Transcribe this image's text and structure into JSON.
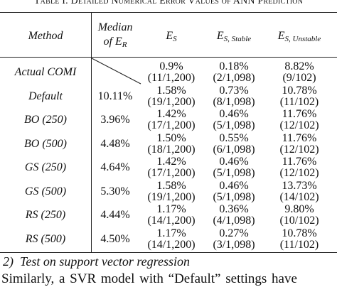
{
  "caption": "Table I. Detailed Numerical Error Values of ANN Prediction",
  "table": {
    "headers": [
      "Method",
      {
        "line1": "Median",
        "line2": "of",
        "symbol": "E",
        "sub": "R"
      },
      {
        "symbol": "E",
        "sub": "S"
      },
      {
        "symbol": "E",
        "sub": "S, Stable"
      },
      {
        "symbol": "E",
        "sub": "S, Unstable"
      }
    ],
    "rows": [
      {
        "method": "Actual COMI",
        "es": [
          "0.9%",
          "(11/1,200)"
        ],
        "stable": [
          "0.18%",
          "(2/1,098)"
        ],
        "unstable": [
          "8.82%",
          "(9/102)"
        ]
      },
      {
        "method": "Default",
        "median": "10.11%",
        "es": [
          "1.58%",
          "(19/1,200)"
        ],
        "stable": [
          "0.73%",
          "(8/1,098)"
        ],
        "unstable": [
          "10.78%",
          "(11/102)"
        ]
      },
      {
        "method": "BO (250)",
        "median": "3.96%",
        "es": [
          "1.42%",
          "(17/1,200)"
        ],
        "stable": [
          "0.46%",
          "(5/1,098)"
        ],
        "unstable": [
          "11.76%",
          "(12/102)"
        ]
      },
      {
        "method": "BO (500)",
        "median": "4.48%",
        "es": [
          "1.50%",
          "(18/1,200)"
        ],
        "stable": [
          "0.55%",
          "(6/1,098)"
        ],
        "unstable": [
          "11.76%",
          "(12/102)"
        ]
      },
      {
        "method": "GS (250)",
        "median": "4.64%",
        "es": [
          "1.42%",
          "(17/1,200)"
        ],
        "stable": [
          "0.46%",
          "(5/1,098)"
        ],
        "unstable": [
          "11.76%",
          "(12/102)"
        ]
      },
      {
        "method": "GS (500)",
        "median": "5.30%",
        "es": [
          "1.58%",
          "(19/1,200)"
        ],
        "stable": [
          "0.46%",
          "(5/1,098)"
        ],
        "unstable": [
          "13.73%",
          "(14/102)"
        ]
      },
      {
        "method": "RS (250)",
        "median": "4.44%",
        "es": [
          "1.17%",
          "(14/1,200)"
        ],
        "stable": [
          "0.36%",
          "(4/1,098)"
        ],
        "unstable": [
          "9.80%",
          "(10/102)"
        ]
      },
      {
        "method": "RS (500)",
        "median": "4.50%",
        "es": [
          "1.17%",
          "(14/1,200)"
        ],
        "stable": [
          "0.27%",
          "(3/1,098)"
        ],
        "unstable": [
          "10.78%",
          "(11/102)"
        ]
      }
    ]
  },
  "section": {
    "number": "2)",
    "title": "Test on support vector regression"
  },
  "paragraph": "Similarly, a SVR model with “Default” settings have"
}
